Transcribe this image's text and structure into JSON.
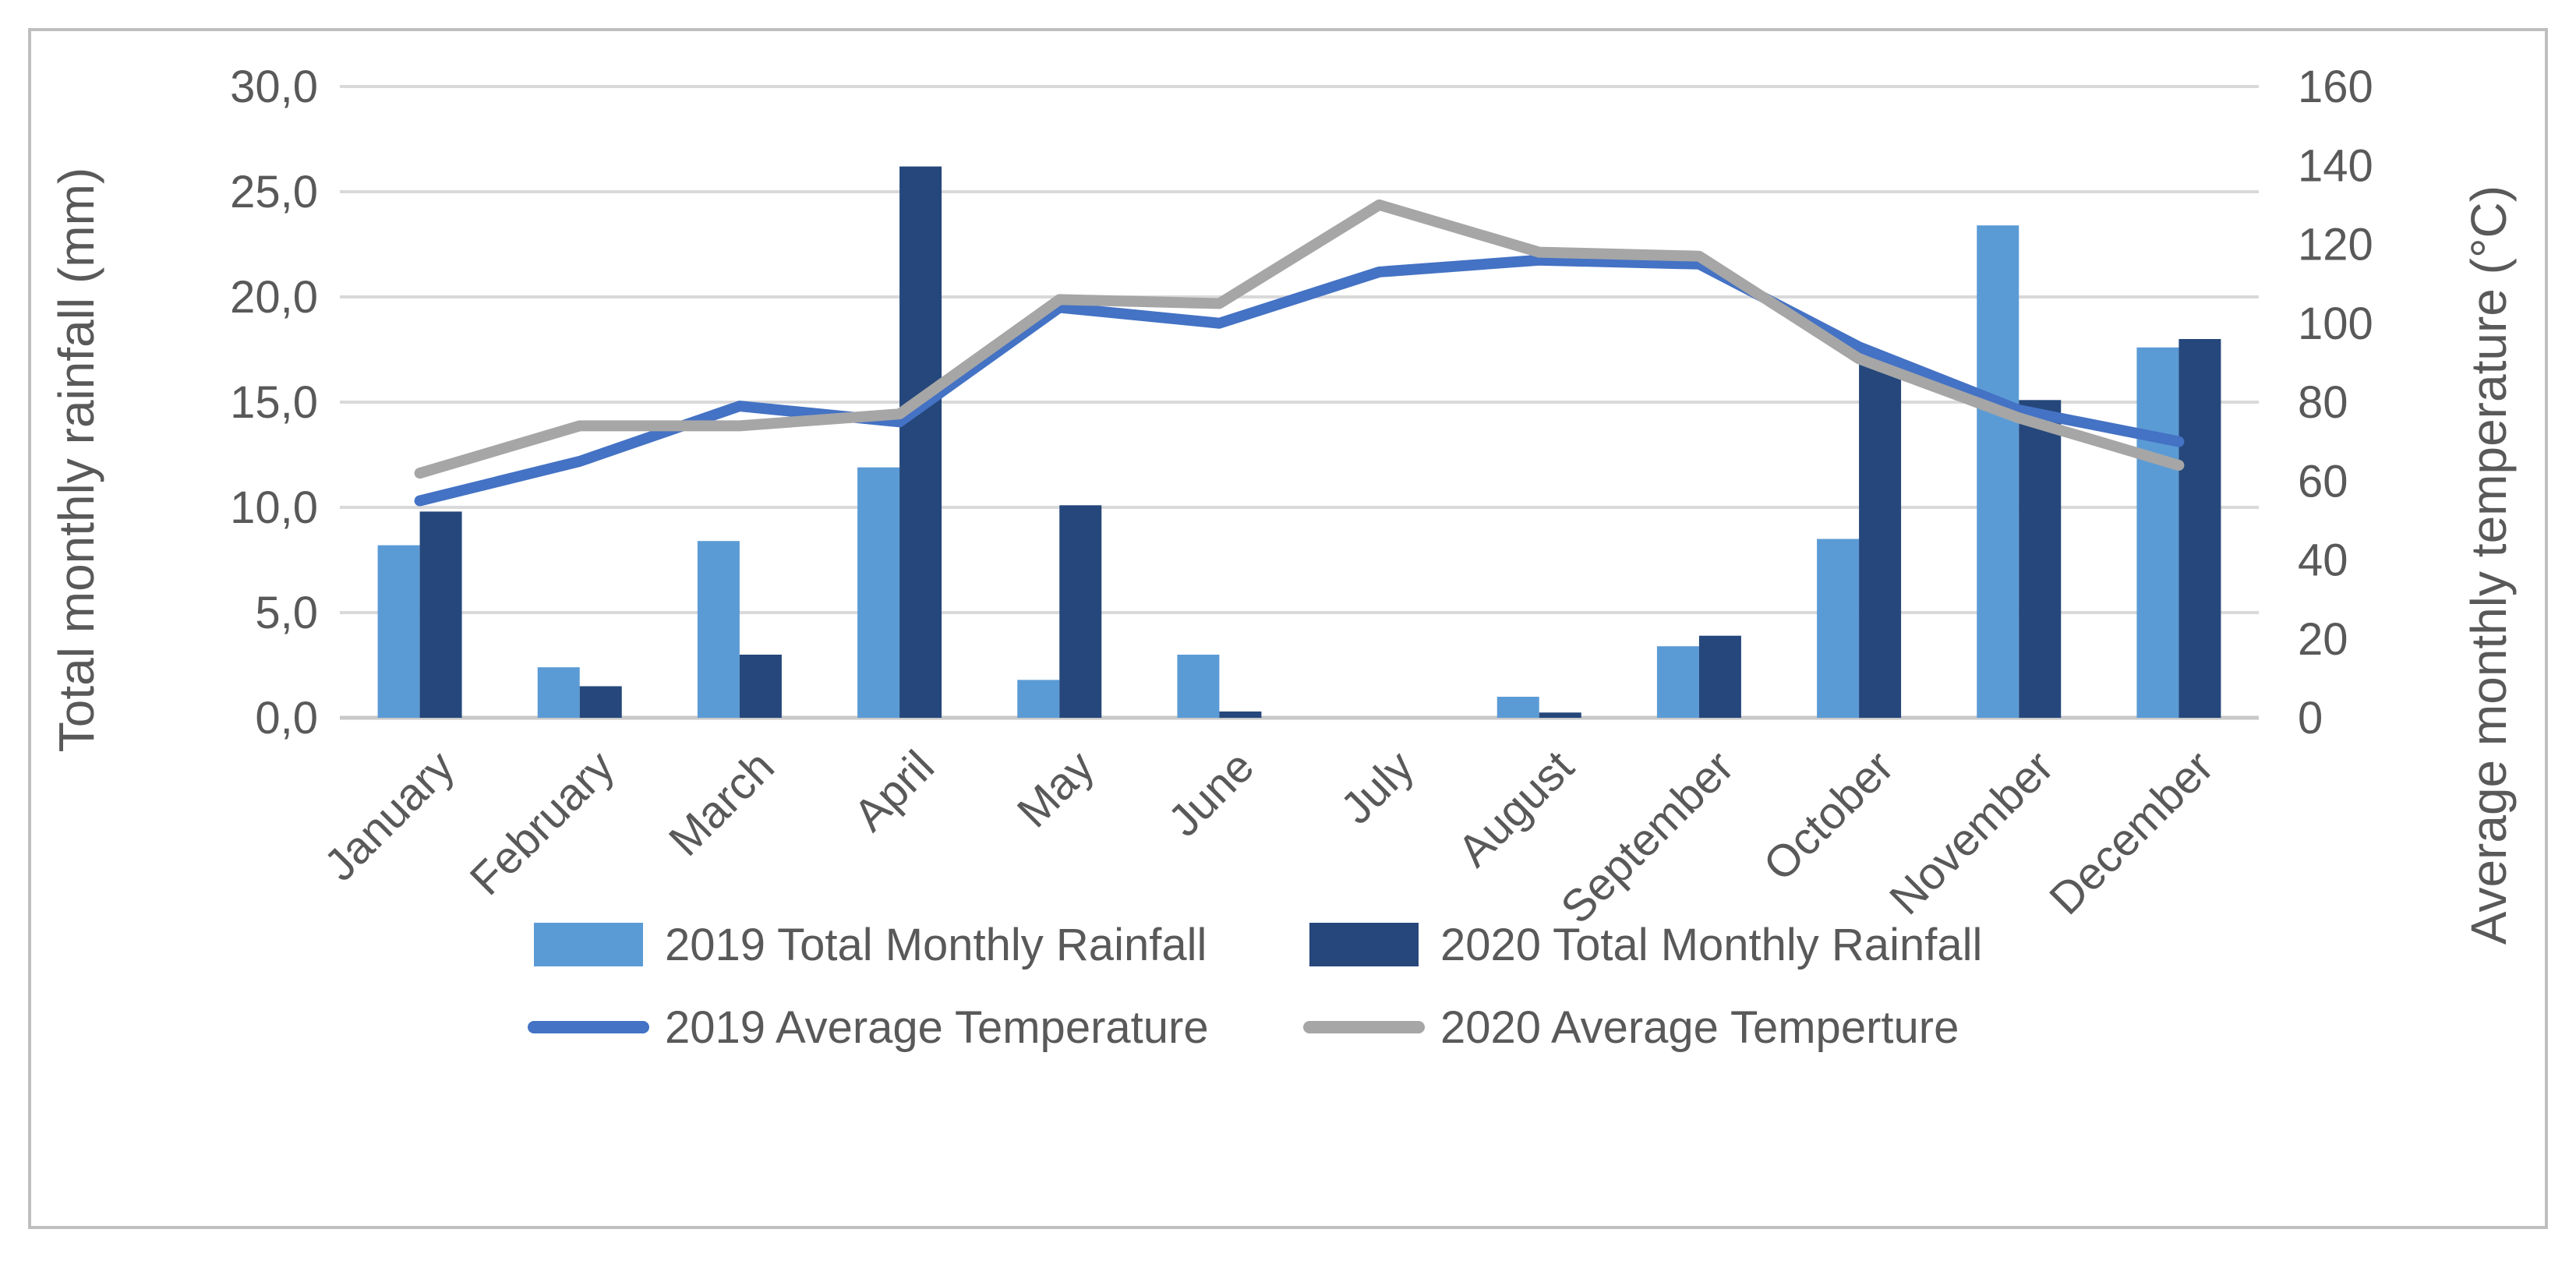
{
  "chart_data": {
    "type": "combo-bar-line",
    "title": "",
    "categories": [
      "January",
      "February",
      "March",
      "April",
      "May",
      "June",
      "July",
      "August",
      "September",
      "October",
      "November",
      "December"
    ],
    "bar_series": [
      {
        "name": "2019 Total Monthly Rainfall",
        "color": "#5B9BD5",
        "values": [
          8.2,
          2.4,
          8.4,
          11.9,
          1.8,
          3.0,
          0,
          1.0,
          3.4,
          8.5,
          23.4,
          17.6
        ]
      },
      {
        "name": "2020 Total Monthly Rainfall",
        "color": "#25477B",
        "values": [
          9.8,
          1.5,
          3.0,
          26.2,
          10.1,
          0.3,
          0,
          0.25,
          3.9,
          16.9,
          15.1,
          18.0
        ]
      }
    ],
    "line_series": [
      {
        "name": "2019 Average Temperature",
        "color": "#4472C4",
        "values": [
          55,
          65,
          79,
          75,
          104,
          100,
          113,
          116,
          115,
          94,
          78,
          70
        ]
      },
      {
        "name": "2020 Average Temperture",
        "color": "#A6A6A6",
        "values": [
          62,
          74,
          74,
          77,
          106,
          105,
          130,
          118,
          117,
          91,
          76,
          64
        ]
      }
    ],
    "left_axis": {
      "label": "Total monthly rainfall (mm)",
      "min": 0,
      "max": 30,
      "step": 5,
      "tick_labels": [
        "30,0",
        "25,0",
        "20,0",
        "15,0",
        "10,0",
        "5,0",
        "0,0"
      ]
    },
    "right_axis": {
      "label": "Average monthly temperature (°C)",
      "min": 0,
      "max": 160,
      "step": 20,
      "tick_labels": [
        "160",
        "140",
        "120",
        "100",
        "80",
        "60",
        "40",
        "20",
        "0"
      ]
    },
    "grid": true,
    "legend_position": "bottom"
  },
  "colors": {
    "gridline": "#D9D9D9",
    "baseline": "#C9C9C9",
    "frame_border": "#BFBFBF",
    "text": "#595959",
    "background": "#FFFFFF"
  }
}
